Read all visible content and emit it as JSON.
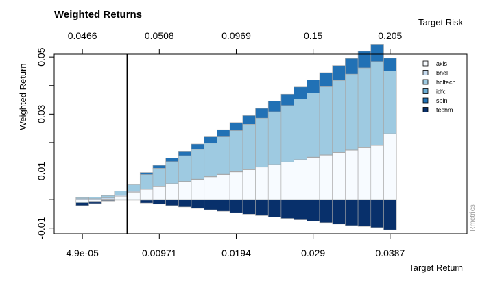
{
  "chart_data": {
    "type": "bar",
    "title": "Weighted Returns",
    "ylabel": "Weighted Return",
    "xlabel_bottom": "Target Return",
    "xlabel_top": "Target Risk",
    "watermark": "Rmetrics",
    "ylim": [
      -0.012,
      0.051
    ],
    "yticks": [
      -0.01,
      0.01,
      0.03,
      0.05
    ],
    "ytick_labels": [
      "-0.01",
      "0.01",
      "0.03",
      "0.05"
    ],
    "yminor_ticks": [
      0.0,
      0.02,
      0.04
    ],
    "bottom_ticks": [
      {
        "bar": 1,
        "label": "4.9e-05"
      },
      {
        "bar": 7,
        "label": "0.00971"
      },
      {
        "bar": 13,
        "label": "0.0194"
      },
      {
        "bar": 19,
        "label": "0.029"
      },
      {
        "bar": 25,
        "label": "0.0387"
      }
    ],
    "top_ticks": [
      {
        "bar": 1,
        "label": "0.0466"
      },
      {
        "bar": 7,
        "label": "0.0508"
      },
      {
        "bar": 13,
        "label": "0.0969"
      },
      {
        "bar": 19,
        "label": "0.15"
      },
      {
        "bar": 25,
        "label": "0.205"
      }
    ],
    "min_variance_bar": 4.5,
    "n_bars": 25,
    "bar_domain": [
      -1.2,
      31.0
    ],
    "legend_placement": "right",
    "series": [
      {
        "name": "axis",
        "color": "#f7fbff",
        "values": [
          -0.0008,
          -0.0006,
          0.0002,
          0.0012,
          0.0026,
          0.0036,
          0.0045,
          0.0054,
          0.0063,
          0.0071,
          0.008,
          0.0088,
          0.0097,
          0.0105,
          0.0114,
          0.0122,
          0.0131,
          0.0139,
          0.0148,
          0.0156,
          0.0165,
          0.0173,
          0.0182,
          0.019,
          0.023
        ]
      },
      {
        "name": "bhel",
        "color": "#c6dbef",
        "values": [
          0.0003,
          0.0003,
          0.0004,
          0.0004,
          0.0003,
          0.0002,
          0.0002,
          0.0002,
          0.0001,
          0.0001,
          0.0001,
          0.0001,
          0.0001,
          0.0001,
          0.0001,
          0.0001,
          0.0001,
          0.0001,
          0.0001,
          0.0001,
          0.0001,
          0.0001,
          0.0001,
          0.0001,
          0.0001
        ]
      },
      {
        "name": "hcltech",
        "color": "#9ecae1",
        "values": [
          0.0004,
          0.0005,
          0.0008,
          0.0014,
          0.0023,
          0.005,
          0.0063,
          0.0077,
          0.009,
          0.0104,
          0.0117,
          0.0131,
          0.0144,
          0.0158,
          0.0171,
          0.0185,
          0.0198,
          0.0212,
          0.0225,
          0.0239,
          0.0252,
          0.0266,
          0.0279,
          0.0293,
          0.022
        ]
      },
      {
        "name": "idfc",
        "color": "#6baed6",
        "values": [
          -0.0003,
          -0.0003,
          -0.0003,
          -0.0002,
          -0.0002,
          -0.0002,
          -0.0001,
          -0.0001,
          -0.0001,
          -0.0001,
          -0.0001,
          -0.0001,
          -0.0001,
          -0.0001,
          -0.0001,
          -0.0001,
          -0.0001,
          -0.0001,
          -0.0001,
          -0.0001,
          -0.0001,
          -0.0001,
          -0.0001,
          -0.0001,
          -0.0001
        ]
      },
      {
        "name": "sbin",
        "color": "#2171b5",
        "values": [
          0.0,
          0.0,
          0.0,
          0.0,
          0.0,
          0.0007,
          0.001,
          0.0013,
          0.0016,
          0.0019,
          0.0022,
          0.0025,
          0.0028,
          0.0031,
          0.0034,
          0.0037,
          0.004,
          0.0043,
          0.0046,
          0.0049,
          0.0052,
          0.0055,
          0.0058,
          0.0061,
          0.0045
        ]
      },
      {
        "name": "techm",
        "color": "#08306b",
        "values": [
          -0.001,
          -0.0005,
          -0.0002,
          0.0,
          0.0,
          -0.001,
          -0.0015,
          -0.002,
          -0.0025,
          -0.003,
          -0.0035,
          -0.004,
          -0.0045,
          -0.005,
          -0.0055,
          -0.006,
          -0.0065,
          -0.007,
          -0.0075,
          -0.008,
          -0.0085,
          -0.009,
          -0.0093,
          -0.0097,
          -0.0105
        ]
      }
    ]
  }
}
